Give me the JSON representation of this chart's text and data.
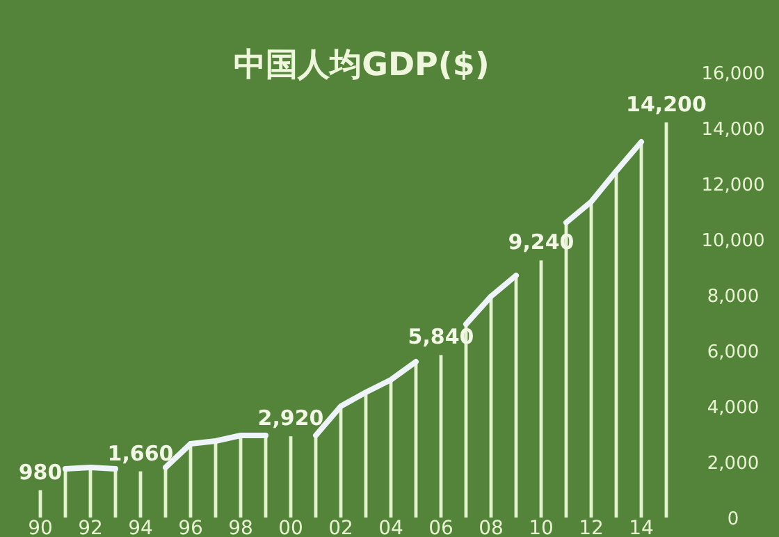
{
  "chart_data": {
    "type": "bar",
    "title": "中国人均GDP($)",
    "categories": [
      "90",
      null,
      "92",
      null,
      "94",
      null,
      "96",
      null,
      "98",
      null,
      "00",
      null,
      "02",
      null,
      "04",
      null,
      "06",
      null,
      "08",
      null,
      "10",
      null,
      "12",
      null,
      "14",
      null
    ],
    "series": [
      {
        "color": "#e4f3cf",
        "values": [
          980,
          1750,
          1800,
          1750,
          1660,
          1800,
          2650,
          2750,
          2950,
          2950,
          2920,
          2950,
          4000,
          4500,
          4950,
          5600,
          5840,
          6950,
          7950,
          8700,
          9240,
          10600,
          11350,
          12450,
          13500,
          14200
        ],
        "value_labels": [
          "980",
          null,
          null,
          null,
          "1,660",
          null,
          null,
          null,
          null,
          null,
          "2,920",
          null,
          null,
          null,
          null,
          null,
          "5,840",
          null,
          null,
          null,
          "9,240",
          null,
          null,
          null,
          null,
          "14,200"
        ]
      },
      {
        "type": "line",
        "color": "#eef4fa",
        "values": [
          null,
          1750,
          1800,
          1750,
          null,
          1800,
          2650,
          2750,
          2950,
          2950,
          null,
          2950,
          4000,
          4500,
          4950,
          5600,
          null,
          6950,
          7950,
          8700,
          null,
          10600,
          11350,
          12450,
          13500,
          null
        ]
      }
    ],
    "ylim": [
      0,
      16000
    ],
    "yticks": [
      0,
      {
        "value": 2000,
        "label": "2,000"
      },
      {
        "value": 4000,
        "label": "4,000"
      },
      {
        "value": 6000,
        "label": "6,000"
      },
      {
        "value": 8000,
        "label": "8,000"
      },
      {
        "value": 10000,
        "label": "10,000"
      },
      {
        "value": 12000,
        "label": "12,000"
      },
      {
        "value": 14000,
        "label": "14,000"
      },
      {
        "value": 16000,
        "label": "16,000"
      }
    ]
  }
}
